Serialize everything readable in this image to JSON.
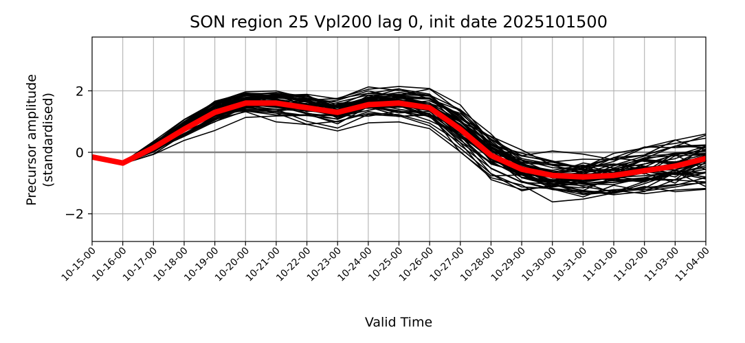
{
  "chart_data": {
    "type": "line",
    "title": "SON region 25 Vpl200 lag 0, init date 2025101500",
    "xlabel": "Valid Time",
    "ylabel": "Precursor amplitude\n(standardised)",
    "categories": [
      "10-15-00",
      "10-16-00",
      "10-17-00",
      "10-18-00",
      "10-19-00",
      "10-20-00",
      "10-21-00",
      "10-22-00",
      "10-23-00",
      "10-24-00",
      "10-25-00",
      "10-26-00",
      "10-27-00",
      "10-28-00",
      "10-29-00",
      "10-30-00",
      "10-31-00",
      "11-01-00",
      "11-02-00",
      "11-03-00",
      "11-04-00"
    ],
    "yticks": [
      -2,
      0,
      2
    ],
    "ylim": [
      -2.9,
      3.75
    ],
    "grid": true,
    "reference_line": {
      "y": 0,
      "color": "#808080"
    },
    "ensemble_start_index": 1,
    "ensemble_mean_values": [
      -0.35,
      0.15,
      0.75,
      1.3,
      1.6,
      1.6,
      1.45,
      1.3,
      1.55,
      1.6,
      1.45,
      0.75,
      -0.1,
      -0.55,
      -0.75,
      -0.8,
      -0.75,
      -0.6,
      -0.45,
      -0.2
    ],
    "ensemble_spread": [
      0.02,
      0.15,
      0.25,
      0.3,
      0.3,
      0.35,
      0.4,
      0.45,
      0.45,
      0.45,
      0.5,
      0.55,
      0.6,
      0.55,
      0.5,
      0.5,
      0.55,
      0.6,
      0.65,
      0.7
    ],
    "ensemble_member_count": 50,
    "series": [
      {
        "values": [
          -0.15,
          -0.35,
          0.15,
          0.75,
          1.3,
          1.6,
          1.6,
          1.45,
          1.3,
          1.55,
          1.6,
          1.45,
          0.75,
          -0.1,
          -0.55,
          -0.75,
          -0.8,
          -0.75,
          -0.6,
          -0.45,
          -0.2
        ],
        "color": "#ff0000"
      }
    ],
    "colors": {
      "members": "#000000",
      "mean": "#ff0000",
      "grid": "#b0b0b0"
    }
  }
}
